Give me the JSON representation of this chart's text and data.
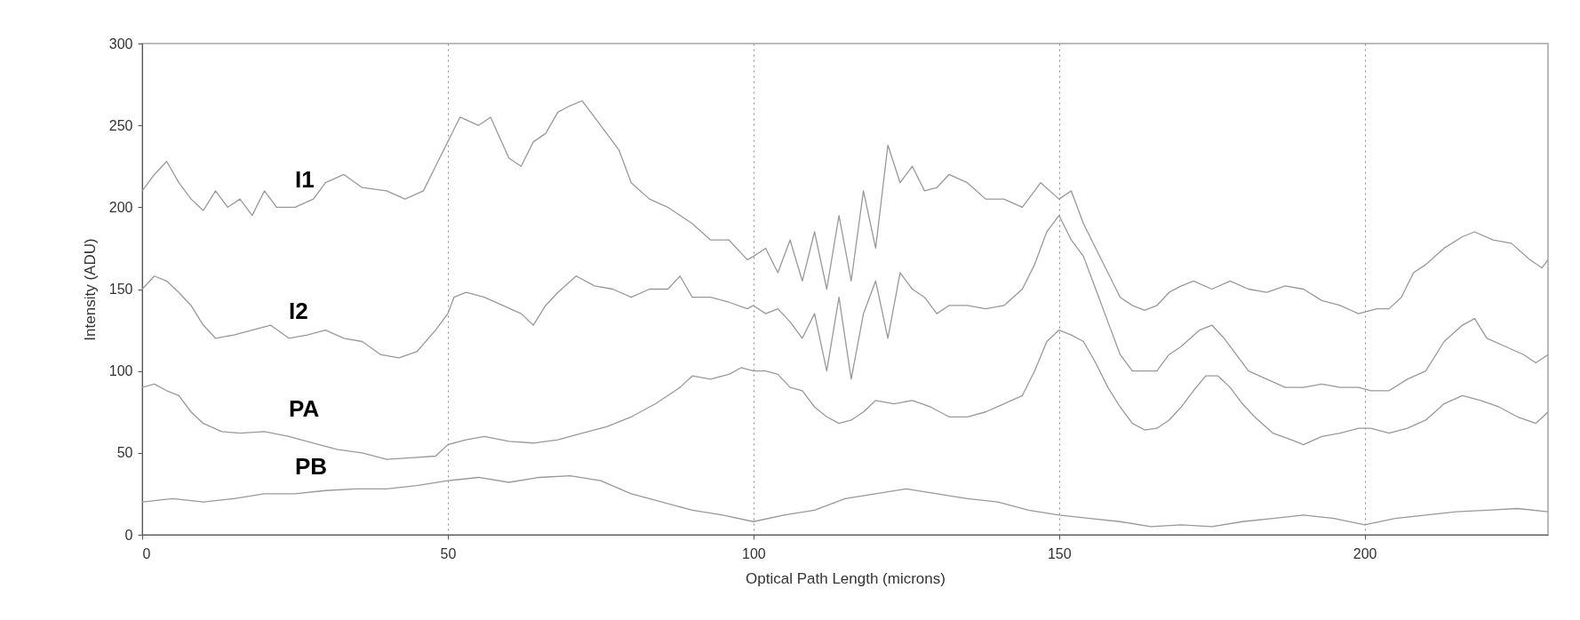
{
  "chart_data": {
    "type": "line",
    "xlabel": "Optical Path Length (microns)",
    "ylabel": "Intensity (ADU)",
    "xlim": [
      0,
      230
    ],
    "ylim": [
      0,
      300
    ],
    "xticks": [
      0,
      50,
      100,
      150,
      200
    ],
    "yticks": [
      0,
      50,
      100,
      150,
      200,
      250,
      300
    ],
    "grid": "x",
    "series": [
      {
        "name": "I1",
        "color": "#999999",
        "x": [
          0,
          2,
          4,
          6,
          8,
          10,
          12,
          14,
          16,
          18,
          20,
          22,
          25,
          28,
          30,
          33,
          36,
          40,
          43,
          46,
          48,
          50,
          52,
          55,
          57,
          60,
          62,
          64,
          66,
          68,
          70,
          72,
          74,
          76,
          78,
          80,
          83,
          86,
          88,
          90,
          93,
          96,
          99,
          100,
          102,
          104,
          106,
          108,
          110,
          112,
          114,
          116,
          118,
          120,
          122,
          124,
          126,
          128,
          130,
          132,
          135,
          138,
          141,
          144,
          147,
          150,
          152,
          154,
          156,
          158,
          160,
          162,
          164,
          166,
          168,
          170,
          172,
          175,
          178,
          181,
          184,
          187,
          190,
          193,
          196,
          199,
          202,
          204,
          206,
          208,
          210,
          213,
          216,
          218,
          221,
          224,
          227,
          229,
          230
        ],
        "values": [
          210,
          220,
          228,
          215,
          205,
          198,
          210,
          200,
          205,
          195,
          210,
          200,
          200,
          205,
          215,
          220,
          212,
          210,
          205,
          210,
          225,
          240,
          255,
          250,
          255,
          230,
          225,
          240,
          245,
          258,
          262,
          265,
          255,
          245,
          235,
          215,
          205,
          200,
          195,
          190,
          180,
          180,
          168,
          170,
          175,
          160,
          180,
          155,
          185,
          150,
          195,
          155,
          210,
          175,
          238,
          215,
          225,
          210,
          212,
          220,
          215,
          205,
          205,
          200,
          215,
          205,
          210,
          190,
          175,
          160,
          145,
          140,
          137,
          140,
          148,
          152,
          155,
          150,
          155,
          150,
          148,
          152,
          150,
          143,
          140,
          135,
          138,
          138,
          145,
          160,
          165,
          175,
          182,
          185,
          180,
          178,
          168,
          163,
          168
        ]
      },
      {
        "name": "I2",
        "color": "#999999",
        "x": [
          0,
          2,
          4,
          6,
          8,
          10,
          12,
          15,
          18,
          21,
          24,
          27,
          30,
          33,
          36,
          39,
          42,
          45,
          48,
          50,
          51,
          53,
          56,
          59,
          62,
          64,
          66,
          68,
          71,
          74,
          77,
          80,
          83,
          86,
          88,
          90,
          93,
          96,
          99,
          100,
          102,
          104,
          106,
          108,
          110,
          112,
          114,
          116,
          118,
          120,
          122,
          124,
          126,
          128,
          130,
          132,
          135,
          138,
          141,
          144,
          146,
          148,
          150,
          152,
          154,
          156,
          158,
          160,
          162,
          164,
          166,
          168,
          170,
          173,
          175,
          177,
          179,
          181,
          184,
          187,
          190,
          193,
          196,
          199,
          201,
          204,
          207,
          210,
          213,
          216,
          218,
          220,
          223,
          226,
          228,
          230
        ],
        "values": [
          150,
          158,
          155,
          148,
          140,
          128,
          120,
          122,
          125,
          128,
          120,
          122,
          125,
          120,
          118,
          110,
          108,
          112,
          125,
          135,
          145,
          148,
          145,
          140,
          135,
          128,
          140,
          148,
          158,
          152,
          150,
          145,
          150,
          150,
          158,
          145,
          145,
          142,
          138,
          140,
          135,
          138,
          130,
          120,
          135,
          100,
          145,
          95,
          135,
          155,
          120,
          160,
          150,
          145,
          135,
          140,
          140,
          138,
          140,
          150,
          165,
          185,
          195,
          180,
          170,
          150,
          130,
          110,
          100,
          100,
          100,
          110,
          115,
          125,
          128,
          120,
          110,
          100,
          95,
          90,
          90,
          92,
          90,
          90,
          88,
          88,
          95,
          100,
          118,
          128,
          132,
          120,
          115,
          110,
          105,
          110
        ]
      },
      {
        "name": "PA",
        "color": "#999999",
        "x": [
          0,
          2,
          4,
          6,
          8,
          10,
          13,
          16,
          20,
          24,
          28,
          32,
          36,
          40,
          44,
          48,
          50,
          53,
          56,
          60,
          64,
          68,
          72,
          76,
          80,
          84,
          88,
          90,
          93,
          96,
          98,
          100,
          102,
          104,
          106,
          108,
          110,
          112,
          114,
          116,
          118,
          120,
          123,
          126,
          129,
          132,
          135,
          138,
          141,
          144,
          146,
          148,
          150,
          152,
          154,
          156,
          158,
          160,
          162,
          164,
          166,
          168,
          170,
          172,
          174,
          176,
          178,
          180,
          182,
          185,
          188,
          190,
          193,
          196,
          199,
          201,
          204,
          207,
          210,
          213,
          216,
          219,
          222,
          225,
          228,
          230
        ],
        "values": [
          90,
          92,
          88,
          85,
          75,
          68,
          63,
          62,
          63,
          60,
          56,
          52,
          50,
          46,
          47,
          48,
          55,
          58,
          60,
          57,
          56,
          58,
          62,
          66,
          72,
          80,
          90,
          97,
          95,
          98,
          102,
          100,
          100,
          98,
          90,
          88,
          78,
          72,
          68,
          70,
          75,
          82,
          80,
          82,
          78,
          72,
          72,
          75,
          80,
          85,
          100,
          118,
          125,
          122,
          118,
          105,
          90,
          78,
          68,
          64,
          65,
          70,
          78,
          88,
          97,
          97,
          90,
          80,
          72,
          62,
          58,
          55,
          60,
          62,
          65,
          65,
          62,
          65,
          70,
          80,
          85,
          82,
          78,
          72,
          68,
          75
        ]
      },
      {
        "name": "PB",
        "color": "#999999",
        "x": [
          0,
          5,
          10,
          15,
          20,
          25,
          30,
          35,
          40,
          45,
          50,
          55,
          60,
          65,
          70,
          75,
          80,
          85,
          90,
          95,
          100,
          105,
          110,
          115,
          120,
          125,
          130,
          135,
          140,
          145,
          150,
          155,
          160,
          165,
          170,
          175,
          180,
          185,
          190,
          195,
          200,
          205,
          210,
          215,
          220,
          225,
          230
        ],
        "values": [
          20,
          22,
          20,
          22,
          25,
          25,
          27,
          28,
          28,
          30,
          33,
          35,
          32,
          35,
          36,
          33,
          25,
          20,
          15,
          12,
          8,
          12,
          15,
          22,
          25,
          28,
          25,
          22,
          20,
          15,
          12,
          10,
          8,
          5,
          6,
          5,
          8,
          10,
          12,
          10,
          6,
          10,
          12,
          14,
          15,
          16,
          14
        ]
      }
    ]
  }
}
